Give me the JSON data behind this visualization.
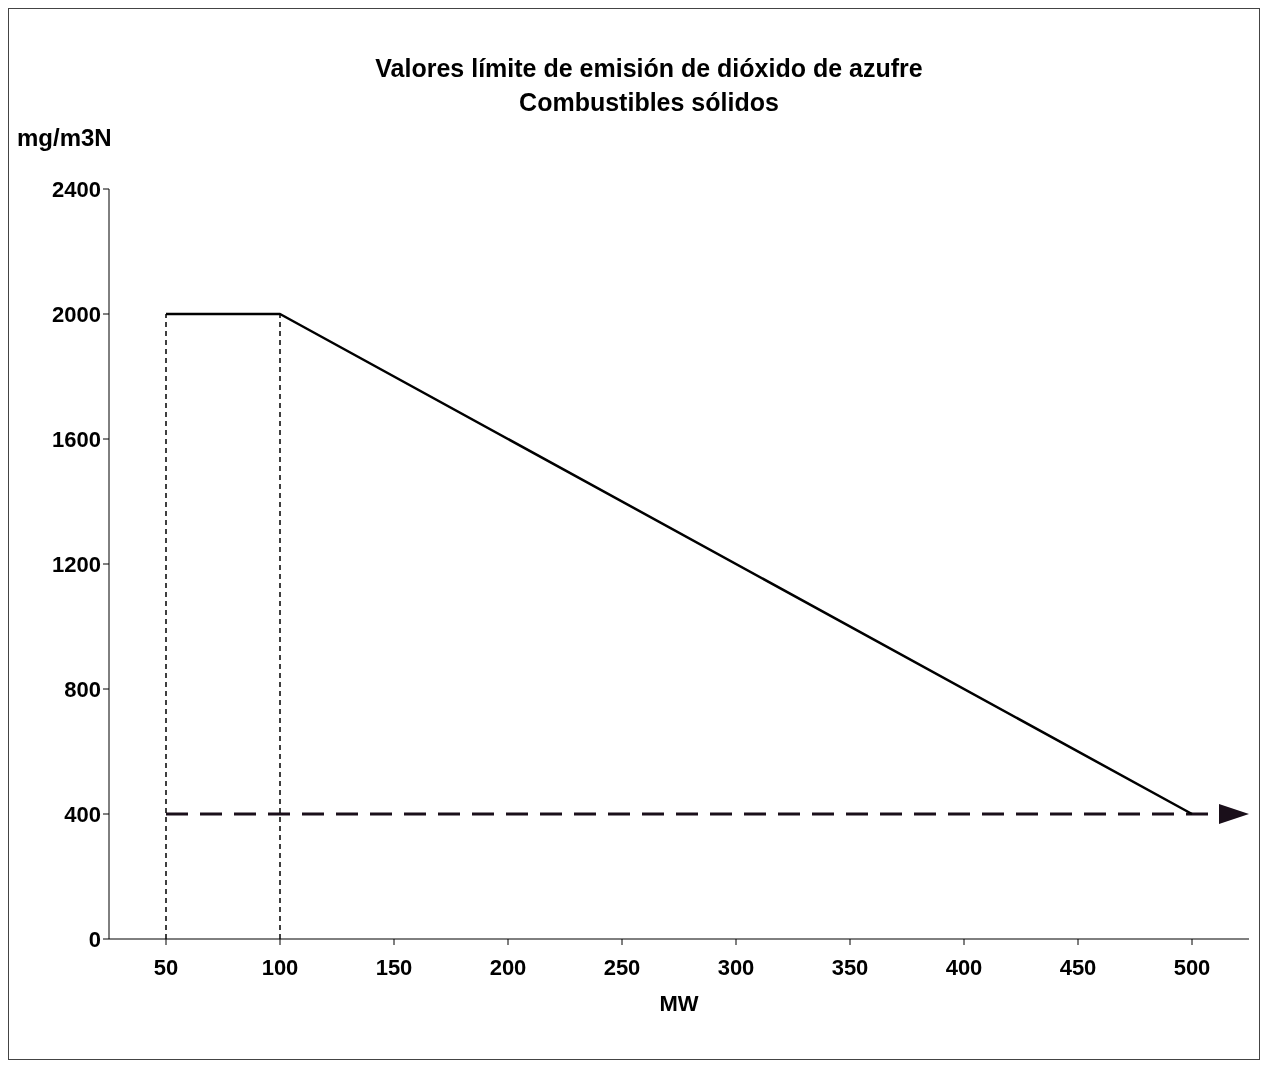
{
  "chart_data": {
    "type": "line",
    "title": "Valores límite de emisión de dióxido de azufre",
    "subtitle": "Combustibles sólidos",
    "xlabel": "MW",
    "ylabel": "mg/m3N",
    "xlim": [
      25,
      525
    ],
    "xticks": [
      50,
      100,
      150,
      200,
      250,
      300,
      350,
      400,
      450,
      500
    ],
    "ylim": [
      0,
      2400
    ],
    "yticks": [
      0,
      400,
      800,
      1200,
      1600,
      2000,
      2400
    ],
    "grid": false,
    "marker": "none",
    "ref_lines": [
      {
        "axis": "y",
        "value": 400,
        "color": "#1a0f1a",
        "line_style": "dashed"
      },
      {
        "axis": "x",
        "value": 50,
        "color": "#000000",
        "line_style": "dashed"
      },
      {
        "axis": "x",
        "value": 100,
        "color": "#000000",
        "line_style": "dashed"
      }
    ],
    "series": [
      {
        "color": "#000000",
        "x": [
          50,
          100,
          500
        ],
        "values": [
          2000,
          2000,
          400
        ],
        "line_style": "solid"
      }
    ]
  }
}
